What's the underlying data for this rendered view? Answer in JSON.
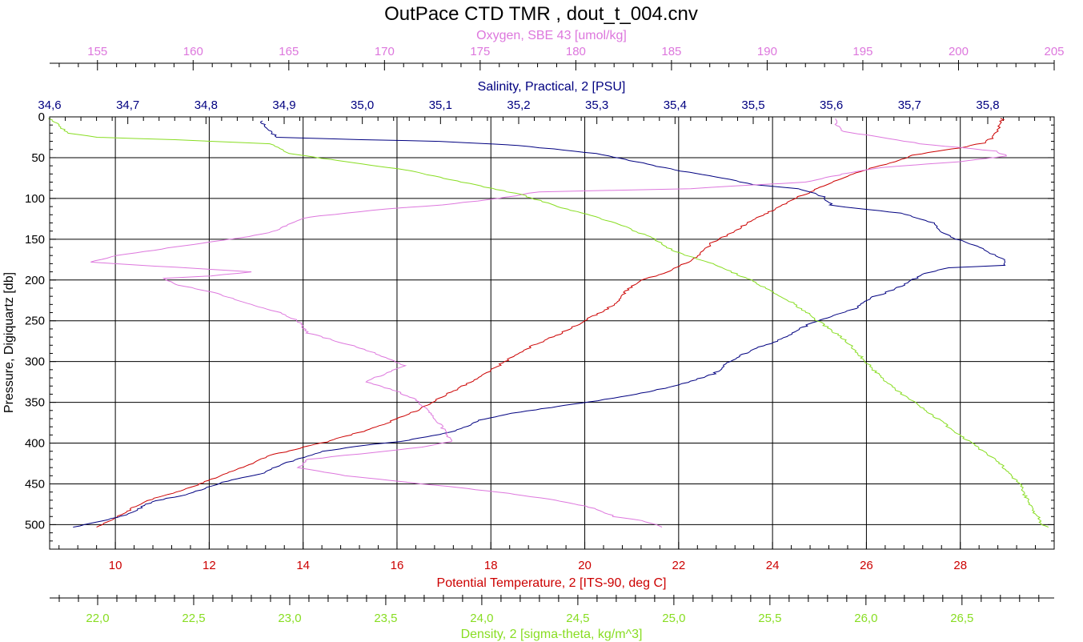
{
  "chart_data": {
    "type": "line",
    "title": "OutPace CTD TMR , dout_t_004.cnv",
    "grid": true,
    "y_axis": {
      "label": "Pressure, Digiquartz [db]",
      "range": [
        0,
        530
      ],
      "inverted": true,
      "ticks": [
        0,
        50,
        100,
        150,
        200,
        250,
        300,
        350,
        400,
        450,
        500
      ],
      "tick_labels": [
        "0",
        "50",
        "100",
        "150",
        "200",
        "250",
        "300",
        "350",
        "400",
        "450",
        "500"
      ]
    },
    "axes": {
      "oxygen": {
        "label": "Oxygen, SBE 43 [umol/kg]",
        "position": "top",
        "color": "#dd77dd",
        "range": [
          152.5,
          205
        ],
        "ticks": [
          155,
          160,
          165,
          170,
          175,
          180,
          185,
          190,
          195,
          200,
          205
        ],
        "tick_labels": [
          "155",
          "160",
          "165",
          "170",
          "175",
          "180",
          "185",
          "190",
          "195",
          "200",
          "205"
        ]
      },
      "salinity": {
        "label": "Salinity, Practical, 2 [PSU]",
        "position": "top",
        "color": "#000080",
        "range": [
          34.6,
          35.885
        ],
        "ticks": [
          34.6,
          34.7,
          34.8,
          34.9,
          35.0,
          35.1,
          35.2,
          35.3,
          35.4,
          35.5,
          35.6,
          35.7,
          35.8
        ],
        "tick_labels": [
          "34,6",
          "34,7",
          "34,8",
          "34,9",
          "35,0",
          "35,1",
          "35,2",
          "35,3",
          "35,4",
          "35,5",
          "35,6",
          "35,7",
          "35,8"
        ]
      },
      "temperature": {
        "label": "Potential Temperature, 2 [ITS-90, deg C]",
        "position": "bottom",
        "color": "#cc0000",
        "range": [
          8.6,
          30.0
        ],
        "ticks": [
          10,
          12,
          14,
          16,
          18,
          20,
          22,
          24,
          26,
          28
        ],
        "tick_labels": [
          "10",
          "12",
          "14",
          "16",
          "18",
          "20",
          "22",
          "24",
          "26",
          "28"
        ]
      },
      "density": {
        "label": "Density, 2 [sigma-theta, kg/m^3]",
        "position": "bottom",
        "color": "#88dd22",
        "range": [
          21.75,
          26.98
        ],
        "ticks": [
          22.0,
          22.5,
          23.0,
          23.5,
          24.0,
          24.5,
          25.0,
          25.5,
          26.0,
          26.5
        ],
        "tick_labels": [
          "22,0",
          "22,5",
          "23,0",
          "23,5",
          "24,0",
          "24,5",
          "25,0",
          "25,5",
          "26,0",
          "26,5"
        ]
      }
    },
    "series": [
      {
        "axis": "temperature",
        "color": "#cc0000",
        "points": [
          [
            28.9,
            2
          ],
          [
            28.85,
            10
          ],
          [
            28.7,
            25
          ],
          [
            28.5,
            32
          ],
          [
            28.0,
            38
          ],
          [
            27.5,
            42
          ],
          [
            27.0,
            47
          ],
          [
            26.6,
            55
          ],
          [
            26.1,
            63
          ],
          [
            25.7,
            70
          ],
          [
            25.2,
            82
          ],
          [
            24.8,
            92
          ],
          [
            24.4,
            102
          ],
          [
            24.0,
            115
          ],
          [
            23.6,
            125
          ],
          [
            23.2,
            140
          ],
          [
            22.7,
            155
          ],
          [
            22.3,
            175
          ],
          [
            21.7,
            192
          ],
          [
            21.2,
            200
          ],
          [
            20.9,
            212
          ],
          [
            20.7,
            228
          ],
          [
            20.0,
            250
          ],
          [
            19.4,
            268
          ],
          [
            18.9,
            280
          ],
          [
            18.3,
            300
          ],
          [
            17.8,
            318
          ],
          [
            17.3,
            333
          ],
          [
            16.9,
            345
          ],
          [
            16.5,
            358
          ],
          [
            16.0,
            370
          ],
          [
            15.6,
            380
          ],
          [
            15.0,
            390
          ],
          [
            14.4,
            400
          ],
          [
            13.8,
            408
          ],
          [
            13.3,
            415
          ],
          [
            12.9,
            425
          ],
          [
            12.4,
            437
          ],
          [
            11.8,
            450
          ],
          [
            11.3,
            460
          ],
          [
            10.6,
            472
          ],
          [
            10.2,
            485
          ],
          [
            9.9,
            495
          ],
          [
            9.6,
            503
          ]
        ]
      },
      {
        "axis": "salinity",
        "color": "#000080",
        "points": [
          [
            34.87,
            5
          ],
          [
            34.88,
            15
          ],
          [
            34.89,
            25
          ],
          [
            35.0,
            28
          ],
          [
            35.1,
            30
          ],
          [
            35.2,
            35
          ],
          [
            35.3,
            45
          ],
          [
            35.35,
            55
          ],
          [
            35.4,
            65
          ],
          [
            35.46,
            75
          ],
          [
            35.5,
            83
          ],
          [
            35.56,
            88
          ],
          [
            35.59,
            98
          ],
          [
            35.6,
            108
          ],
          [
            35.63,
            112
          ],
          [
            35.69,
            118
          ],
          [
            35.73,
            130
          ],
          [
            35.74,
            140
          ],
          [
            35.76,
            150
          ],
          [
            35.79,
            160
          ],
          [
            35.82,
            175
          ],
          [
            35.82,
            182
          ],
          [
            35.75,
            185
          ],
          [
            35.72,
            192
          ],
          [
            35.7,
            202
          ],
          [
            35.68,
            212
          ],
          [
            35.65,
            222
          ],
          [
            35.63,
            235
          ],
          [
            35.6,
            245
          ],
          [
            35.57,
            255
          ],
          [
            35.55,
            265
          ],
          [
            35.53,
            275
          ],
          [
            35.5,
            285
          ],
          [
            35.47,
            300
          ],
          [
            35.45,
            315
          ],
          [
            35.4,
            330
          ],
          [
            35.35,
            340
          ],
          [
            35.3,
            348
          ],
          [
            35.25,
            355
          ],
          [
            35.2,
            362
          ],
          [
            35.15,
            372
          ],
          [
            35.12,
            385
          ],
          [
            35.05,
            398
          ],
          [
            35.0,
            403
          ],
          [
            34.95,
            410
          ],
          [
            34.9,
            425
          ],
          [
            34.87,
            438
          ],
          [
            34.82,
            448
          ],
          [
            34.78,
            462
          ],
          [
            34.73,
            472
          ],
          [
            34.7,
            488
          ],
          [
            34.66,
            497
          ],
          [
            34.63,
            503
          ]
        ]
      },
      {
        "axis": "oxygen",
        "color": "#dd77dd",
        "points": [
          [
            193.5,
            2
          ],
          [
            193.7,
            12
          ],
          [
            194,
            18
          ],
          [
            196,
            25
          ],
          [
            198,
            33
          ],
          [
            202,
            42
          ],
          [
            202.5,
            48
          ],
          [
            200,
            55
          ],
          [
            196,
            62
          ],
          [
            194,
            70
          ],
          [
            192,
            80
          ],
          [
            188,
            85
          ],
          [
            186,
            88
          ],
          [
            182,
            90
          ],
          [
            178,
            92
          ],
          [
            176,
            100
          ],
          [
            173,
            108
          ],
          [
            170,
            113
          ],
          [
            168,
            118
          ],
          [
            166,
            123
          ],
          [
            165,
            132
          ],
          [
            164,
            142
          ],
          [
            162,
            150
          ],
          [
            159.5,
            158
          ],
          [
            157.5,
            165
          ],
          [
            156,
            170
          ],
          [
            154.7,
            178
          ],
          [
            158,
            183
          ],
          [
            161,
            187
          ],
          [
            163,
            190
          ],
          [
            161,
            195
          ],
          [
            158.5,
            198
          ],
          [
            159,
            205
          ],
          [
            161,
            215
          ],
          [
            163,
            230
          ],
          [
            164.5,
            240
          ],
          [
            165.5,
            250
          ],
          [
            166,
            265
          ],
          [
            167.5,
            275
          ],
          [
            169,
            285
          ],
          [
            170,
            295
          ],
          [
            171,
            305
          ],
          [
            170,
            315
          ],
          [
            169,
            325
          ],
          [
            170.5,
            335
          ],
          [
            171.5,
            345
          ],
          [
            172,
            355
          ],
          [
            172.5,
            365
          ],
          [
            173,
            380
          ],
          [
            173.5,
            398
          ],
          [
            172,
            405
          ],
          [
            170,
            410
          ],
          [
            168,
            415
          ],
          [
            166,
            420
          ],
          [
            165.5,
            430
          ],
          [
            168,
            440
          ],
          [
            172,
            450
          ],
          [
            176,
            460
          ],
          [
            179,
            470
          ],
          [
            181,
            480
          ],
          [
            182,
            490
          ],
          [
            183.5,
            495
          ],
          [
            184.5,
            503
          ]
        ]
      },
      {
        "axis": "density",
        "color": "#88dd22",
        "points": [
          [
            21.75,
            2
          ],
          [
            21.85,
            20
          ],
          [
            22.0,
            25
          ],
          [
            22.4,
            28
          ],
          [
            22.9,
            33
          ],
          [
            23.0,
            45
          ],
          [
            23.3,
            55
          ],
          [
            23.6,
            65
          ],
          [
            23.9,
            80
          ],
          [
            24.2,
            95
          ],
          [
            24.4,
            110
          ],
          [
            24.7,
            130
          ],
          [
            24.9,
            150
          ],
          [
            25.0,
            165
          ],
          [
            25.2,
            180
          ],
          [
            25.4,
            200
          ],
          [
            25.6,
            225
          ],
          [
            25.75,
            250
          ],
          [
            25.9,
            275
          ],
          [
            26.0,
            300
          ],
          [
            26.1,
            325
          ],
          [
            26.25,
            350
          ],
          [
            26.4,
            375
          ],
          [
            26.55,
            400
          ],
          [
            26.7,
            425
          ],
          [
            26.8,
            450
          ],
          [
            26.85,
            475
          ],
          [
            26.92,
            500
          ],
          [
            26.95,
            503
          ]
        ]
      }
    ]
  }
}
